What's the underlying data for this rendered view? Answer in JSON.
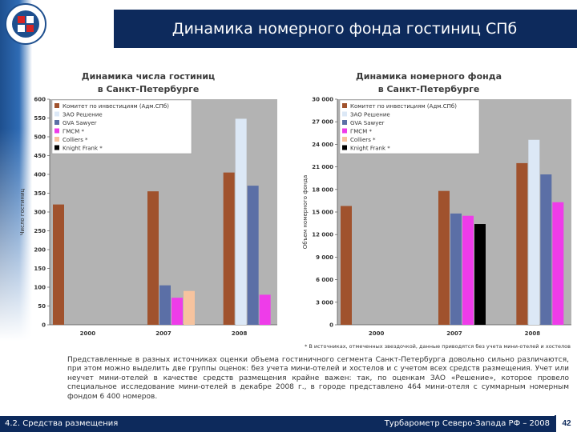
{
  "header": {
    "title": "Динамика номерного фонда гостиниц СПб"
  },
  "colors": {
    "header_bg": "#0d2a5c",
    "plot_bg": "#b3b3b3",
    "series": [
      "#a0522d",
      "#dce8f6",
      "#5b6fa6",
      "#ee3ce9",
      "#f7c39e"
    ]
  },
  "chart_data": [
    {
      "type": "bar",
      "title": "Динамика числа гостиниц в Санкт-Петербурге",
      "title_lines": [
        "Динамика числа гостиниц",
        "в Санкт-Петербурге"
      ],
      "xlabel": "",
      "ylabel": "Число гостиниц",
      "ylim": [
        0,
        600
      ],
      "yticks": [
        "0",
        "50",
        "100",
        "150",
        "200",
        "250",
        "300",
        "350",
        "400",
        "450",
        "500",
        "550",
        "600"
      ],
      "categories": [
        "2000",
        "2007",
        "2008"
      ],
      "grid": false,
      "legend_position": "top-left",
      "series": [
        {
          "name": "Комитет по инвестициям (Адм.СПб)",
          "values": [
            320,
            355,
            405
          ]
        },
        {
          "name": "ЗАО Решение",
          "values": [
            null,
            null,
            548
          ]
        },
        {
          "name": "GVA Sawyer",
          "values": [
            null,
            105,
            370
          ]
        },
        {
          "name": "ГМСМ *",
          "values": [
            null,
            72,
            80
          ]
        },
        {
          "name": "Colliers *",
          "values": [
            null,
            90,
            null
          ]
        },
        {
          "name": "Knight Frank *",
          "values": [
            null,
            null,
            null
          ]
        }
      ]
    },
    {
      "type": "bar",
      "title": "Динамика номерного фонда в Санкт-Петербурге",
      "title_lines": [
        "Динамика номерного фонда",
        "в Санкт-Петербурге"
      ],
      "xlabel": "",
      "ylabel": "Объем номерного фонда",
      "ylim": [
        0,
        30000
      ],
      "yticks": [
        "0",
        "3 000",
        "6 000",
        "9 000",
        "12 000",
        "15 000",
        "18 000",
        "21 000",
        "24 000",
        "27 000",
        "30 000"
      ],
      "categories": [
        "2000",
        "2007",
        "2008"
      ],
      "grid": false,
      "legend_position": "top-left",
      "series": [
        {
          "name": "Комитет по инвестициям (Адм.СПб)",
          "values": [
            15800,
            17800,
            21500
          ]
        },
        {
          "name": "ЗАО Решение",
          "values": [
            null,
            null,
            24600
          ]
        },
        {
          "name": "GVA Sawyer",
          "values": [
            null,
            14800,
            20000
          ]
        },
        {
          "name": "ГМСМ *",
          "values": [
            null,
            14500,
            16300
          ]
        },
        {
          "name": "Colliers *",
          "values": [
            null,
            null,
            null
          ]
        },
        {
          "name": "Knight Frank *",
          "values": [
            null,
            13400,
            null
          ]
        }
      ]
    }
  ],
  "footnote": "* В источниках, отмеченных звездочкой, данные приводятся без учета мини-отелей и хостелов",
  "paragraph": "Представленные в разных источниках оценки объема гостиничного сегмента Санкт-Петербурга довольно сильно различаются, при этом можно выделить две группы оценок: без учета мини-отелей и хостелов и с учетом всех средств размещения. Учет или неучет мини-отелей в качестве средств размещения крайне важен: так, по оценкам ЗАО «Решение», которое провело специальное исследование мини-отелей в декабре 2008 г., в городе представлено 464 мини-отеля с суммарным номерным фондом 6 400 номеров.",
  "footer": {
    "left": "4.2. Средства размещения",
    "right": "Турбарометр Северо-Запада РФ – 2008",
    "page": "42"
  }
}
